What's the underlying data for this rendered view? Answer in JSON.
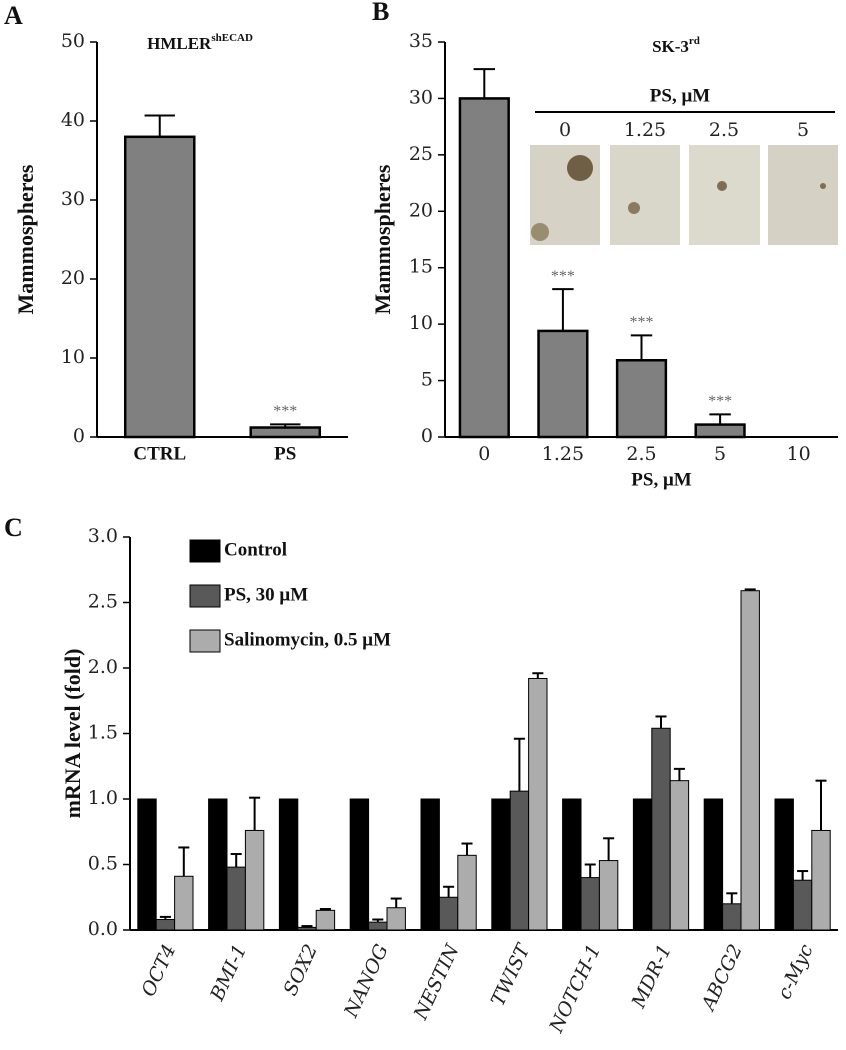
{
  "chart_data": [
    {
      "type": "bar",
      "panel": "A",
      "title": "HMLER",
      "title_sup": "shECAD",
      "ylabel": "Mammospheres",
      "categories": [
        "CTRL",
        "PS"
      ],
      "values": [
        38,
        1.2
      ],
      "errors": [
        2.7,
        0.4
      ],
      "color": "#808080",
      "significance": [
        null,
        "***"
      ],
      "ylim": [
        0,
        50
      ],
      "yticks": [
        0,
        10,
        20,
        30,
        40,
        50
      ]
    },
    {
      "type": "bar",
      "panel": "B",
      "title": "SK-3",
      "title_sup": "rd",
      "ylabel": "Mammospheres",
      "xlabel": "PS,  μM",
      "categories": [
        "0",
        "1.25",
        "2.5",
        "5",
        "10"
      ],
      "values": [
        30,
        9.4,
        6.8,
        1.1,
        0
      ],
      "errors": [
        2.6,
        3.7,
        2.2,
        0.9,
        0
      ],
      "color": "#808080",
      "significance": [
        null,
        "***",
        "***",
        "***",
        null
      ],
      "ylim": [
        0,
        35
      ],
      "yticks": [
        0,
        5,
        10,
        15,
        20,
        25,
        30,
        35
      ],
      "inset": {
        "header": "PS,  μM",
        "labels": [
          "0",
          "1.25",
          "2.5",
          "5"
        ]
      }
    },
    {
      "type": "bar",
      "panel": "C",
      "ylabel": "mRNA level (fold)",
      "legend": "upper left",
      "xtick_italic": true,
      "categories": [
        "OCT4",
        "BMI-1",
        "SOX2",
        "NANOG",
        "NESTIN",
        "TWIST",
        "NOTCH-1",
        "MDR-1",
        "ABCG2",
        "c-Myc"
      ],
      "series": [
        {
          "name": "Control",
          "color": "#000000",
          "values": [
            1,
            1,
            1,
            1,
            1,
            1,
            1,
            1,
            1,
            1
          ]
        },
        {
          "name": "PS, 30 μM",
          "color": "#595959",
          "values": [
            0.08,
            0.48,
            0.02,
            0.06,
            0.25,
            1.06,
            0.4,
            1.54,
            0.2,
            0.38
          ],
          "errors": [
            0.02,
            0.1,
            0.01,
            0.02,
            0.08,
            0.4,
            0.1,
            0.09,
            0.08,
            0.07
          ]
        },
        {
          "name": "Salinomycin, 0.5 μM",
          "color": "#acacac",
          "values": [
            0.41,
            0.76,
            0.15,
            0.17,
            0.57,
            1.92,
            0.53,
            1.14,
            2.59,
            0.76
          ],
          "errors": [
            0.22,
            0.25,
            0.01,
            0.07,
            0.09,
            0.04,
            0.17,
            0.09,
            0.01,
            0.38
          ]
        }
      ],
      "ylim": [
        0,
        3
      ],
      "yticks": [
        {
          "value": 0,
          "label": "0.0"
        },
        {
          "value": 0.5,
          "label": "0.5"
        },
        {
          "value": 1,
          "label": "1.0"
        },
        {
          "value": 1.5,
          "label": "1.5"
        },
        {
          "value": 2,
          "label": "2.0"
        },
        {
          "value": 2.5,
          "label": "2.5"
        },
        {
          "value": 3,
          "label": "3.0"
        }
      ]
    }
  ]
}
